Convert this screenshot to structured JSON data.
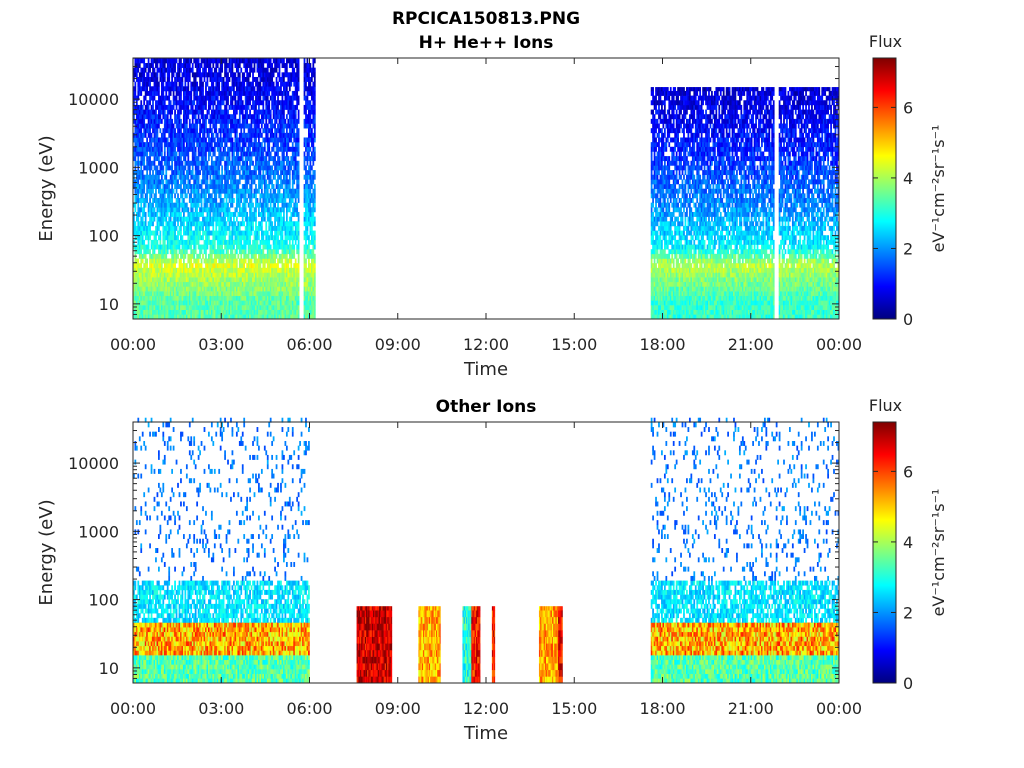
{
  "figure": {
    "title": "RPCICA150813.PNG"
  },
  "colors": {
    "colormap": "jet",
    "axis": "#262626",
    "background": "#ffffff"
  },
  "chart_data": [
    {
      "type": "heatmap",
      "title": "H+ He++ Ions",
      "xlabel": "Time",
      "ylabel": "Energy (eV)",
      "x_ticks": [
        "00:00",
        "03:00",
        "06:00",
        "09:00",
        "12:00",
        "15:00",
        "18:00",
        "21:00",
        "00:00"
      ],
      "x_tick_hours": [
        0,
        3,
        6,
        9,
        12,
        15,
        18,
        21,
        24
      ],
      "xlim_hours": [
        0,
        24
      ],
      "y_scale": "log",
      "y_ticks": [
        "10",
        "100",
        "1000",
        "10000"
      ],
      "y_tick_values": [
        10,
        100,
        1000,
        10000
      ],
      "ylim": [
        6,
        40000
      ],
      "colorbar": {
        "title": "Flux",
        "label": "eV⁻¹cm⁻²sr⁻¹s⁻¹",
        "ticks": [
          "0",
          "2",
          "4",
          "6"
        ],
        "tick_values": [
          0,
          2,
          4,
          6
        ],
        "range": [
          0,
          7.4
        ]
      },
      "data_segments": [
        {
          "start_hour": 0.0,
          "end_hour": 5.65,
          "emax_ev": 40000
        },
        {
          "start_hour": 5.8,
          "end_hour": 6.2,
          "emax_ev": 40000
        },
        {
          "start_hour": 17.6,
          "end_hour": 21.8,
          "emax_ev": 15000
        },
        {
          "start_hour": 21.95,
          "end_hour": 24.0,
          "emax_ev": 15000
        }
      ],
      "flux_profile": [
        {
          "energy_ev": 20000,
          "flux": 0.7
        },
        {
          "energy_ev": 5000,
          "flux": 1.1
        },
        {
          "energy_ev": 1000,
          "flux": 1.6
        },
        {
          "energy_ev": 200,
          "flux": 2.3
        },
        {
          "energy_ev": 60,
          "flux": 3.0
        },
        {
          "energy_ev": 35,
          "flux": 4.4
        },
        {
          "energy_ev": 10,
          "flux": 3.4
        }
      ]
    },
    {
      "type": "heatmap",
      "title": "Other Ions",
      "xlabel": "Time",
      "ylabel": "Energy (eV)",
      "x_ticks": [
        "00:00",
        "03:00",
        "06:00",
        "09:00",
        "12:00",
        "15:00",
        "18:00",
        "21:00",
        "00:00"
      ],
      "x_tick_hours": [
        0,
        3,
        6,
        9,
        12,
        15,
        18,
        21,
        24
      ],
      "xlim_hours": [
        0,
        24
      ],
      "y_scale": "log",
      "y_ticks": [
        "10",
        "100",
        "1000",
        "10000"
      ],
      "y_tick_values": [
        10,
        100,
        1000,
        10000
      ],
      "ylim": [
        6,
        40000
      ],
      "colorbar": {
        "title": "Flux",
        "label": "eV⁻¹cm⁻²sr⁻¹s⁻¹",
        "ticks": [
          "0",
          "2",
          "4",
          "6"
        ],
        "tick_values": [
          0,
          2,
          4,
          6
        ],
        "range": [
          0,
          7.4
        ]
      },
      "background_segments": [
        {
          "start_hour": 0.0,
          "end_hour": 6.0
        },
        {
          "start_hour": 17.6,
          "end_hour": 24.0
        }
      ],
      "bursts": [
        {
          "start_hour": 7.6,
          "end_hour": 8.8,
          "emax_ev": 80,
          "flux": 6.8
        },
        {
          "start_hour": 9.7,
          "end_hour": 10.45,
          "emax_ev": 80,
          "flux": 5.2
        },
        {
          "start_hour": 11.2,
          "end_hour": 11.5,
          "emax_ev": 80,
          "flux": 3.0
        },
        {
          "start_hour": 11.5,
          "end_hour": 11.8,
          "emax_ev": 80,
          "flux": 6.4
        },
        {
          "start_hour": 12.2,
          "end_hour": 12.3,
          "emax_ev": 80,
          "flux": 6.3
        },
        {
          "start_hour": 13.8,
          "end_hour": 14.45,
          "emax_ev": 80,
          "flux": 5.3
        },
        {
          "start_hour": 14.45,
          "end_hour": 14.6,
          "emax_ev": 80,
          "flux": 6.5
        }
      ]
    }
  ]
}
